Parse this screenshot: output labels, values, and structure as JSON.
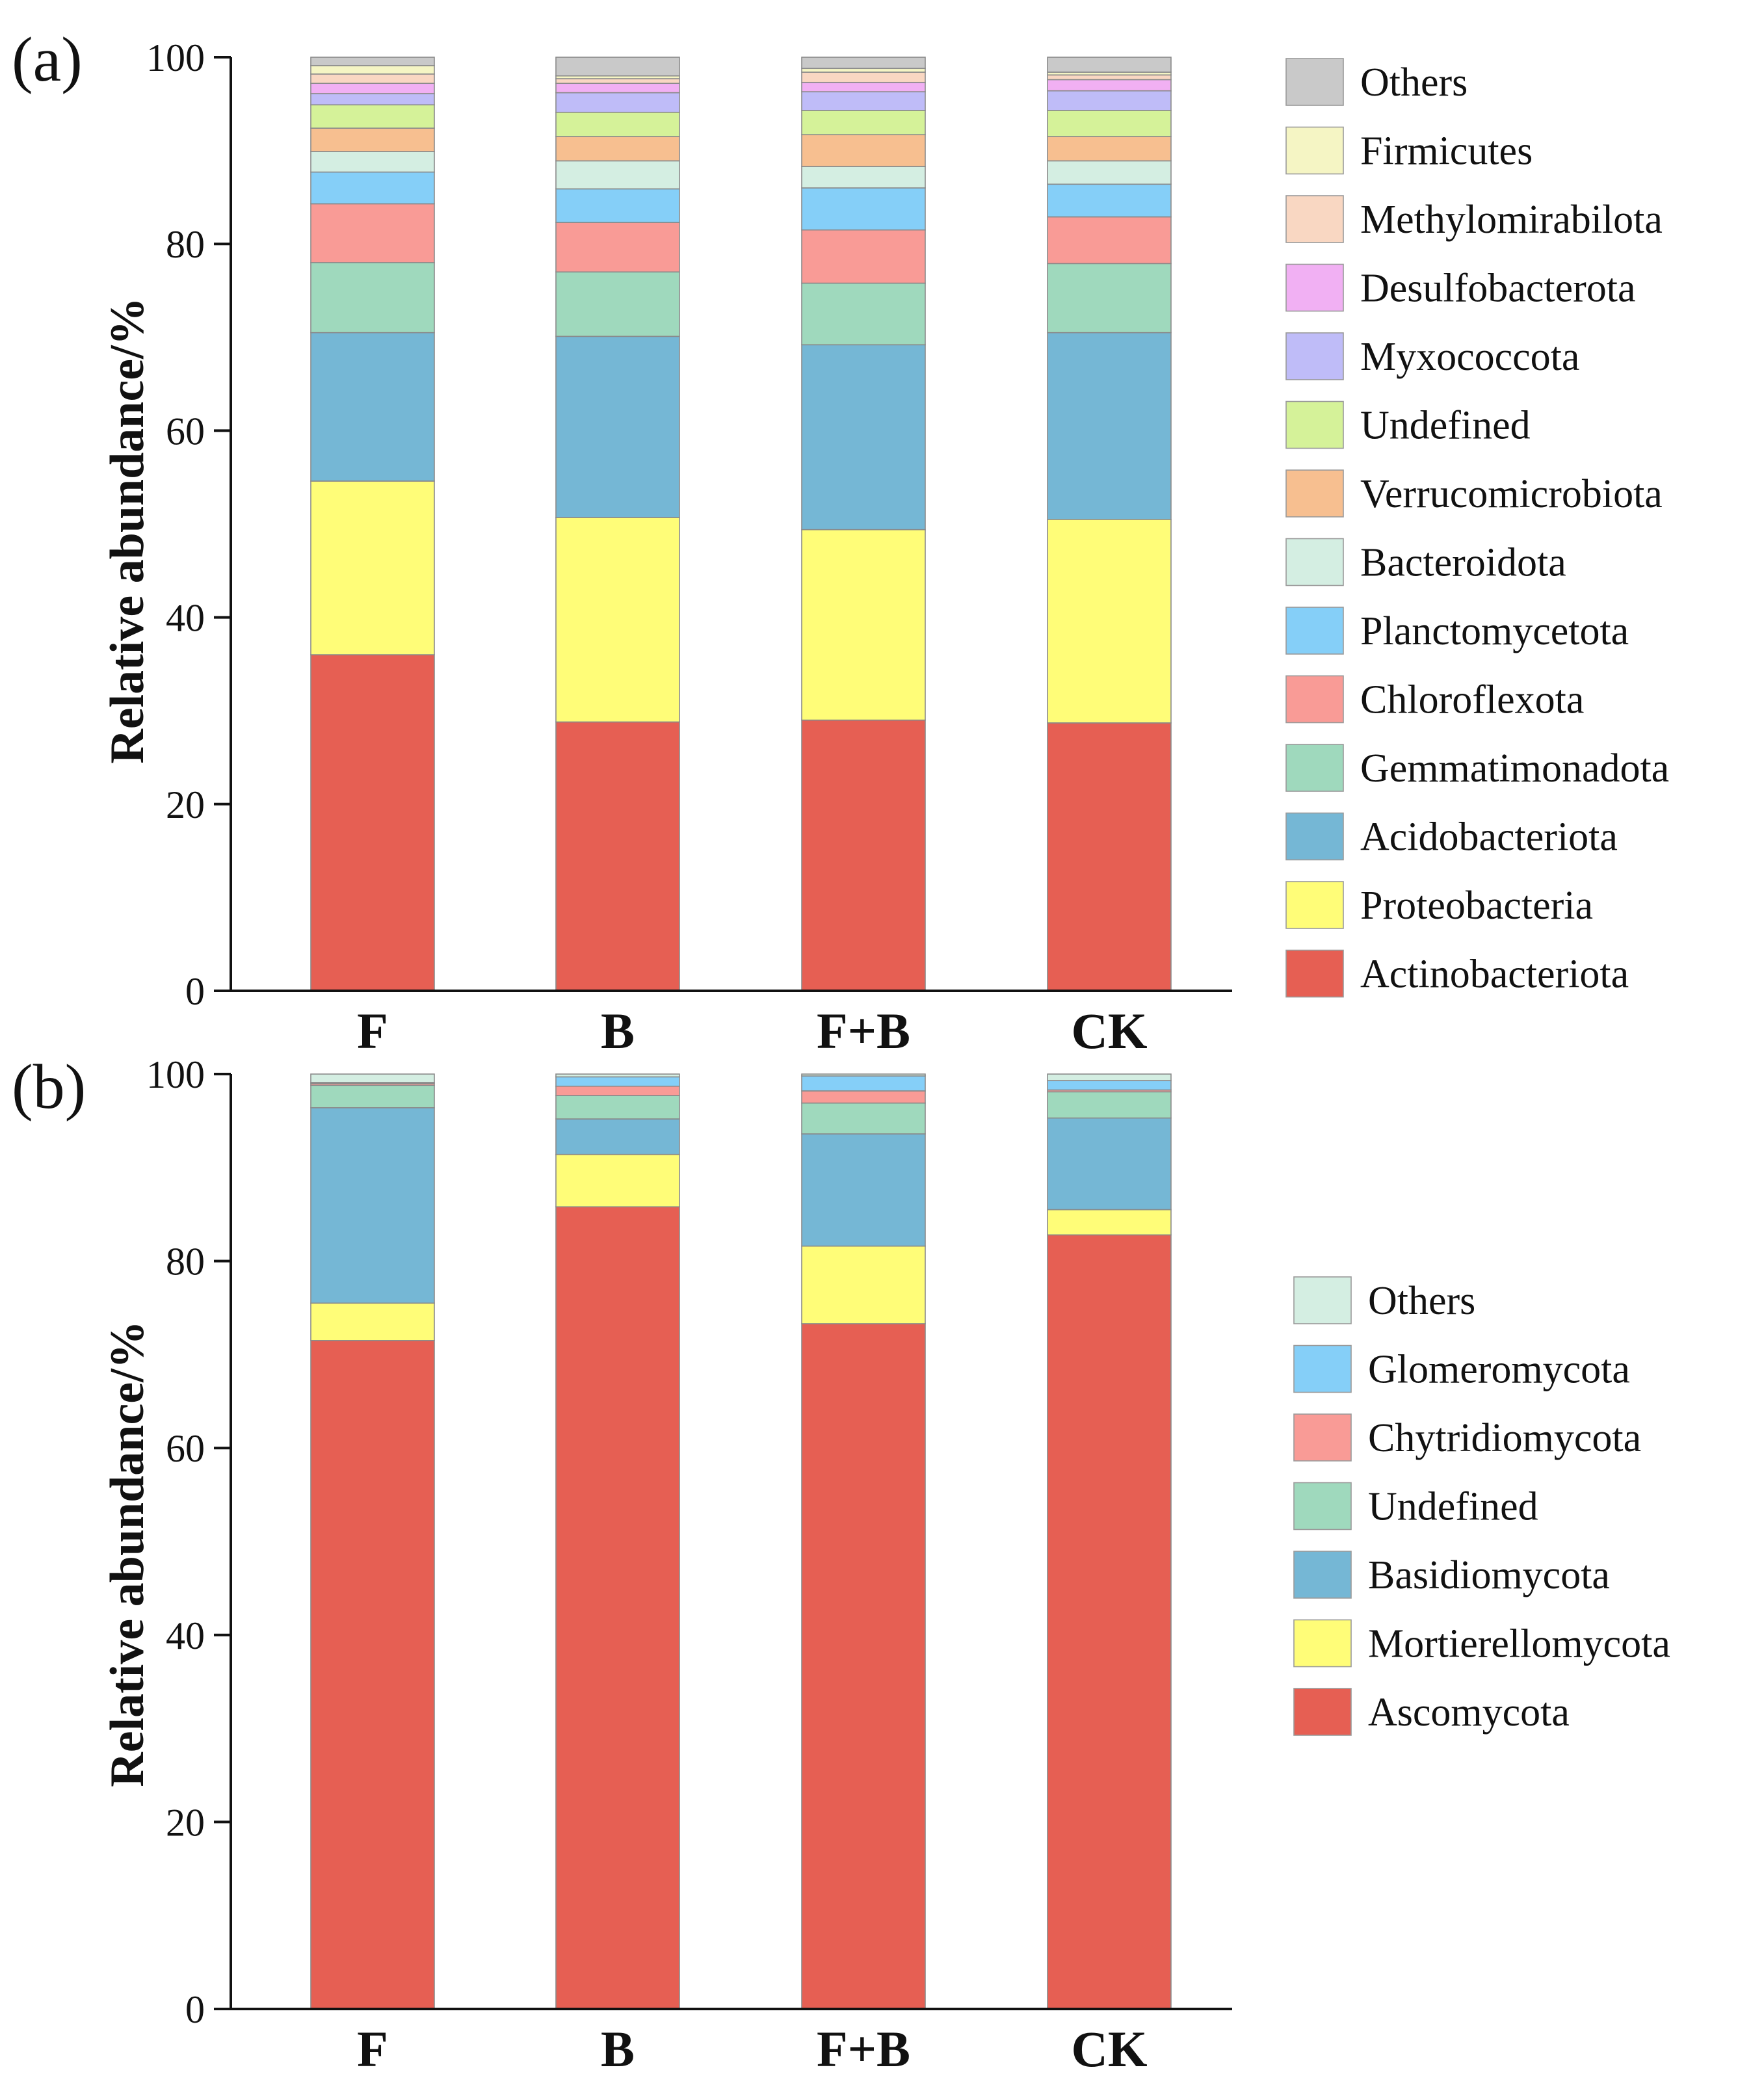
{
  "chart_data": [
    {
      "panel": "(a)",
      "type": "bar",
      "stacked": true,
      "ylabel": "Relative abundance/%",
      "ylim": [
        0,
        100
      ],
      "yticks": [
        0,
        20,
        40,
        60,
        80,
        100
      ],
      "grid": false,
      "legend_position": "right",
      "categories": [
        "F",
        "B",
        "F+B",
        "CK"
      ],
      "series": [
        {
          "name": "Actinobacteriota",
          "color": "#e65f53",
          "values": [
            36.0,
            28.8,
            29.0,
            28.7
          ]
        },
        {
          "name": "Proteobacteria",
          "color": "#fffd78",
          "values": [
            18.6,
            21.9,
            20.4,
            21.8
          ]
        },
        {
          "name": "Acidobacteriota",
          "color": "#75b7d5",
          "values": [
            15.9,
            19.4,
            19.8,
            20.0
          ]
        },
        {
          "name": "Gemmatimonadota",
          "color": "#9fd9bd",
          "values": [
            7.5,
            6.9,
            6.6,
            7.4
          ]
        },
        {
          "name": "Chloroflexota",
          "color": "#f99b96",
          "values": [
            6.3,
            5.3,
            5.7,
            5.0
          ]
        },
        {
          "name": "Planctomycetota",
          "color": "#85cff8",
          "values": [
            3.4,
            3.6,
            4.5,
            3.5
          ]
        },
        {
          "name": "Bacteroidota",
          "color": "#d4eee2",
          "values": [
            2.2,
            3.0,
            2.3,
            2.5
          ]
        },
        {
          "name": "Verrucomicrobiota",
          "color": "#f7bf90",
          "values": [
            2.5,
            2.6,
            3.4,
            2.6
          ]
        },
        {
          "name": "Undefined",
          "color": "#d5f299",
          "values": [
            2.5,
            2.6,
            2.6,
            2.8
          ]
        },
        {
          "name": "Myxococcota",
          "color": "#bfbcf8",
          "values": [
            1.2,
            2.1,
            2.0,
            2.1
          ]
        },
        {
          "name": "Desulfobacterota",
          "color": "#f1b0f3",
          "values": [
            1.1,
            1.0,
            1.0,
            1.2
          ]
        },
        {
          "name": "Methylomirabilota",
          "color": "#f9d7c2",
          "values": [
            1.0,
            0.5,
            1.1,
            0.5
          ]
        },
        {
          "name": "Firmicutes",
          "color": "#f5f5c4",
          "values": [
            0.9,
            0.3,
            0.4,
            0.3
          ]
        },
        {
          "name": "Others",
          "color": "#c9c9c9",
          "values": [
            0.9,
            2.0,
            1.2,
            1.6
          ]
        }
      ]
    },
    {
      "panel": "(b)",
      "type": "bar",
      "stacked": true,
      "ylabel": "Relative abundance/%",
      "ylim": [
        0,
        100
      ],
      "yticks": [
        0,
        20,
        40,
        60,
        80,
        100
      ],
      "grid": false,
      "legend_position": "right",
      "categories": [
        "F",
        "B",
        "F+B",
        "CK"
      ],
      "series": [
        {
          "name": "Ascomycota",
          "color": "#e65f53",
          "values": [
            71.5,
            85.8,
            73.3,
            82.8
          ]
        },
        {
          "name": "Mortierellomycota",
          "color": "#fffd78",
          "values": [
            4.0,
            5.6,
            8.3,
            2.7
          ]
        },
        {
          "name": "Basidiomycota",
          "color": "#75b7d5",
          "values": [
            20.9,
            3.8,
            12.0,
            9.8
          ]
        },
        {
          "name": "Undefined",
          "color": "#9fd9bd",
          "values": [
            2.4,
            2.5,
            3.3,
            2.8
          ]
        },
        {
          "name": "Chytridiomycota",
          "color": "#f99b96",
          "values": [
            0.2,
            1.0,
            1.3,
            0.2
          ]
        },
        {
          "name": "Glomeromycota",
          "color": "#85cff8",
          "values": [
            0.1,
            1.0,
            1.6,
            1.0
          ]
        },
        {
          "name": "Others",
          "color": "#d4eee2",
          "values": [
            0.9,
            0.3,
            0.2,
            0.7
          ]
        }
      ]
    }
  ]
}
